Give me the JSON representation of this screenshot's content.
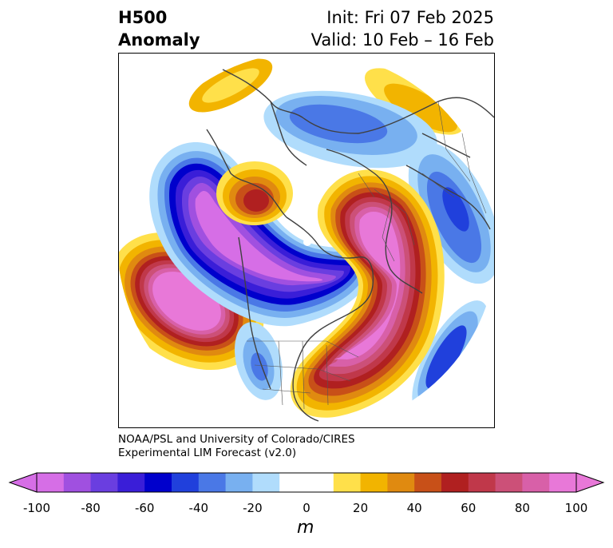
{
  "title": {
    "left_line1": "H500",
    "left_line2": "Anomaly",
    "right_line1": "Init: Fri 07 Feb 2025",
    "right_line2": "Valid: 10 Feb – 16 Feb"
  },
  "credit": {
    "line1": "NOAA/PSL and University of Colorado/CIRES",
    "line2": "Experimental LIM Forecast (v2.0)"
  },
  "colorbar": {
    "units": "m",
    "ticks": [
      "-100",
      "-80",
      "-60",
      "-40",
      "-20",
      "0",
      "20",
      "40",
      "60",
      "80",
      "100"
    ],
    "colors": [
      "#d66ee6",
      "#a050e0",
      "#6a3ee0",
      "#3a1ed8",
      "#0000cc",
      "#2040dc",
      "#4a78e6",
      "#78b0f0",
      "#b0dcfc",
      "#ffffff",
      "#ffffff",
      "#ffe04a",
      "#f2b400",
      "#e08a10",
      "#c85018",
      "#b02020",
      "#c0384a",
      "#cc5078",
      "#d860a8",
      "#e878d8"
    ]
  }
}
